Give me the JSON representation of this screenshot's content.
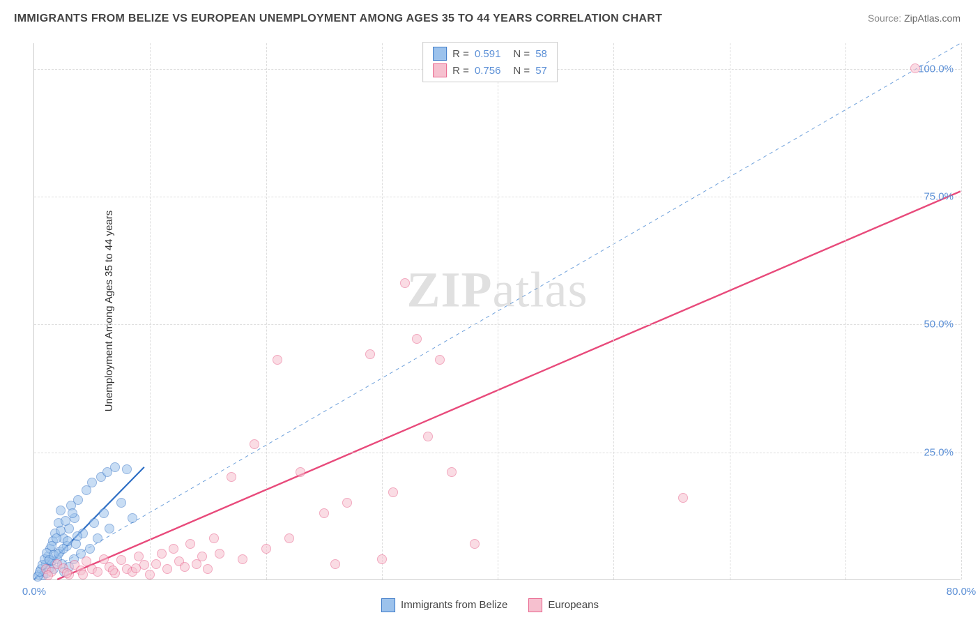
{
  "title": "IMMIGRANTS FROM BELIZE VS EUROPEAN UNEMPLOYMENT AMONG AGES 35 TO 44 YEARS CORRELATION CHART",
  "source_label": "Source:",
  "source_value": "ZipAtlas.com",
  "watermark": {
    "zip": "ZIP",
    "atlas": "atlas"
  },
  "chart": {
    "type": "scatter",
    "background_color": "#ffffff",
    "grid_color": "#dddddd",
    "axis_color": "#cccccc",
    "xlim": [
      0,
      80
    ],
    "ylim": [
      0,
      105
    ],
    "xticks": [
      0,
      10,
      20,
      30,
      40,
      50,
      60,
      70,
      80
    ],
    "yticks": [
      25,
      50,
      75,
      100
    ],
    "xtick_labels": {
      "0": "0.0%",
      "80": "80.0%"
    },
    "ytick_labels": {
      "25": "25.0%",
      "50": "50.0%",
      "75": "75.0%",
      "100": "100.0%"
    },
    "tick_label_color": "#5b8fd6",
    "tick_label_fontsize": 15,
    "ylabel": "Unemployment Among Ages 35 to 44 years",
    "ylabel_fontsize": 15,
    "ylabel_color": "#333333",
    "marker_radius": 7,
    "marker_opacity": 0.55,
    "diagonal_line": {
      "color": "#6ea0db",
      "width": 1,
      "dash": "5,5",
      "x1": 0,
      "y1": 0,
      "x2": 80,
      "y2": 105
    },
    "series": [
      {
        "name": "Immigrants from Belize",
        "legend_label": "Immigrants from Belize",
        "color_fill": "#9cc2ec",
        "color_stroke": "#3e7ac8",
        "R": "0.591",
        "N": "58",
        "trend": {
          "x1": 0,
          "y1": 0,
          "x2": 9.5,
          "y2": 22,
          "color": "#2f6fc5",
          "width": 2.2
        },
        "points": [
          [
            0.4,
            1.0
          ],
          [
            0.6,
            2.0
          ],
          [
            0.8,
            0.8
          ],
          [
            1.0,
            3.0
          ],
          [
            1.1,
            1.2
          ],
          [
            1.2,
            4.5
          ],
          [
            1.3,
            2.2
          ],
          [
            1.4,
            6.0
          ],
          [
            1.5,
            3.5
          ],
          [
            1.6,
            7.5
          ],
          [
            1.7,
            2.0
          ],
          [
            1.8,
            9.0
          ],
          [
            2.0,
            4.0
          ],
          [
            2.1,
            11.0
          ],
          [
            2.2,
            5.5
          ],
          [
            2.3,
            13.5
          ],
          [
            2.4,
            3.0
          ],
          [
            2.5,
            8.0
          ],
          [
            2.6,
            1.5
          ],
          [
            2.8,
            6.5
          ],
          [
            3.0,
            10.0
          ],
          [
            3.0,
            2.5
          ],
          [
            3.2,
            14.5
          ],
          [
            3.4,
            4.0
          ],
          [
            3.5,
            12.0
          ],
          [
            3.6,
            7.0
          ],
          [
            3.8,
            15.5
          ],
          [
            4.0,
            5.0
          ],
          [
            4.2,
            9.0
          ],
          [
            4.5,
            17.5
          ],
          [
            4.8,
            6.0
          ],
          [
            5.0,
            19.0
          ],
          [
            5.2,
            11.0
          ],
          [
            5.5,
            8.0
          ],
          [
            5.8,
            20.0
          ],
          [
            6.0,
            13.0
          ],
          [
            6.3,
            21.0
          ],
          [
            6.5,
            10.0
          ],
          [
            7.0,
            22.0
          ],
          [
            7.5,
            15.0
          ],
          [
            8.0,
            21.5
          ],
          [
            8.5,
            12.0
          ],
          [
            0.3,
            0.5
          ],
          [
            0.5,
            1.5
          ],
          [
            0.7,
            2.8
          ],
          [
            0.9,
            4.0
          ],
          [
            1.1,
            5.2
          ],
          [
            1.3,
            3.8
          ],
          [
            1.5,
            6.5
          ],
          [
            1.7,
            4.8
          ],
          [
            1.9,
            8.0
          ],
          [
            2.1,
            5.0
          ],
          [
            2.3,
            9.5
          ],
          [
            2.5,
            6.0
          ],
          [
            2.7,
            11.5
          ],
          [
            2.9,
            7.5
          ],
          [
            3.3,
            13.0
          ],
          [
            3.7,
            8.5
          ]
        ]
      },
      {
        "name": "Europeans",
        "legend_label": "Europeans",
        "color_fill": "#f6c0cf",
        "color_stroke": "#e8638c",
        "R": "0.756",
        "N": "57",
        "trend": {
          "x1": 2,
          "y1": 0,
          "x2": 80,
          "y2": 76,
          "color": "#e84a7b",
          "width": 2.4
        },
        "points": [
          [
            1.0,
            2.0
          ],
          [
            1.5,
            1.5
          ],
          [
            2.0,
            3.0
          ],
          [
            2.5,
            2.2
          ],
          [
            3.0,
            1.0
          ],
          [
            3.5,
            2.8
          ],
          [
            4.0,
            1.8
          ],
          [
            4.5,
            3.5
          ],
          [
            5.0,
            2.0
          ],
          [
            5.5,
            1.5
          ],
          [
            6.0,
            4.0
          ],
          [
            6.5,
            2.5
          ],
          [
            7.0,
            1.2
          ],
          [
            7.5,
            3.8
          ],
          [
            8.0,
            2.0
          ],
          [
            8.5,
            1.5
          ],
          [
            9.0,
            4.5
          ],
          [
            9.5,
            2.8
          ],
          [
            10.0,
            1.0
          ],
          [
            10.5,
            3.0
          ],
          [
            11.0,
            5.0
          ],
          [
            11.5,
            2.0
          ],
          [
            12.0,
            6.0
          ],
          [
            12.5,
            3.5
          ],
          [
            13.0,
            2.5
          ],
          [
            13.5,
            7.0
          ],
          [
            14.0,
            3.0
          ],
          [
            14.5,
            4.5
          ],
          [
            15.0,
            2.0
          ],
          [
            15.5,
            8.0
          ],
          [
            16.0,
            5.0
          ],
          [
            17.0,
            20.0
          ],
          [
            18.0,
            4.0
          ],
          [
            19.0,
            26.5
          ],
          [
            20.0,
            6.0
          ],
          [
            21.0,
            43.0
          ],
          [
            22.0,
            8.0
          ],
          [
            23.0,
            21.0
          ],
          [
            25.0,
            13.0
          ],
          [
            26.0,
            3.0
          ],
          [
            27.0,
            15.0
          ],
          [
            29.0,
            44.0
          ],
          [
            30.0,
            4.0
          ],
          [
            31.0,
            17.0
          ],
          [
            32.0,
            58.0
          ],
          [
            33.0,
            47.0
          ],
          [
            34.0,
            28.0
          ],
          [
            35.0,
            43.0
          ],
          [
            36.0,
            21.0
          ],
          [
            38.0,
            7.0
          ],
          [
            56.0,
            16.0
          ],
          [
            76.0,
            100.0
          ],
          [
            1.2,
            0.8
          ],
          [
            2.8,
            1.2
          ],
          [
            4.2,
            0.9
          ],
          [
            6.8,
            1.8
          ],
          [
            8.8,
            2.2
          ]
        ]
      }
    ]
  },
  "rn_legend": {
    "r_label": "R  =",
    "n_label": "N  ="
  },
  "bottom_legend_items": [
    {
      "series": 0
    },
    {
      "series": 1
    }
  ]
}
